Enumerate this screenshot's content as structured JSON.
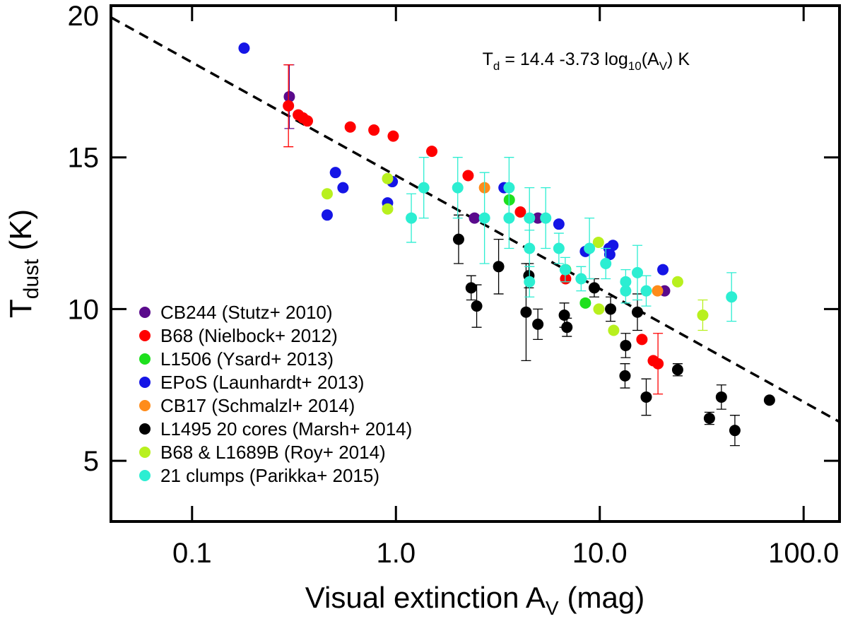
{
  "chart_data": {
    "type": "scatter",
    "xscale": "log",
    "xlim": [
      0.04,
      150
    ],
    "ylim": [
      3,
      20
    ],
    "xticks": [
      0.1,
      {
        "value": 1,
        "label": "1.0"
      },
      {
        "value": 10,
        "label": "10.0"
      },
      {
        "value": 100,
        "label": "100.0"
      }
    ],
    "yticks": [
      5,
      10,
      15,
      20
    ],
    "xlabel": [
      "Visual extinction A",
      "V",
      "(mag)"
    ],
    "ylabel": [
      "T",
      "dust",
      "(K)"
    ],
    "annotation": [
      "T",
      "d",
      " = 14.4 -3.73 log",
      "10",
      "(A",
      "V",
      ") K"
    ],
    "fit": {
      "intercept": 14.4,
      "slope": -3.73
    },
    "legend": "lower left",
    "series": [
      {
        "name": "CB244 (Stutz+ 2010)",
        "color": "#5a0a8c",
        "x": [
          0.3,
          2.43,
          4.97,
          20.8
        ],
        "y": [
          17.0,
          13.0,
          13.0,
          10.6
        ],
        "errors": [
          1.05,
          null,
          null,
          null
        ]
      },
      {
        "name": "B68 (Nielbock+ 2012)",
        "color": "#ff0000",
        "x": [
          0.297,
          0.332,
          0.35,
          0.368,
          0.597,
          0.78,
          0.97,
          1.5,
          2.26,
          4.08,
          6.8,
          16.1,
          18.3,
          19.3
        ],
        "y": [
          16.7,
          16.4,
          16.3,
          16.2,
          16.0,
          15.9,
          15.7,
          15.2,
          14.4,
          13.2,
          11.0,
          9.0,
          8.3,
          8.2
        ],
        "errors": [
          1.35,
          null,
          null,
          null,
          null,
          null,
          null,
          null,
          null,
          null,
          null,
          null,
          null,
          1.0
        ]
      },
      {
        "name": "L1506 (Ysard+ 2013)",
        "color": "#1ee01e",
        "x": [
          3.6,
          6.8,
          8.5
        ],
        "y": [
          13.6,
          11.3,
          10.2
        ]
      },
      {
        "name": "EPoS (Launhardt+ 2013)",
        "color": "#1515e6",
        "x": [
          0.18,
          0.505,
          0.55,
          0.46,
          0.91,
          0.96,
          3.39,
          6.3,
          8.5,
          11.2,
          11.1,
          11.6,
          20.4
        ],
        "y": [
          18.6,
          14.5,
          14.0,
          13.1,
          13.5,
          14.2,
          14.0,
          12.8,
          11.9,
          11.8,
          12.0,
          12.1,
          11.3
        ]
      },
      {
        "name": "CB17 (Schmalzl+ 2014)",
        "color": "#ff8c1a",
        "x": [
          2.72,
          19.2
        ],
        "y": [
          14.0,
          10.6
        ]
      },
      {
        "name": "L1495 20 cores (Marsh+ 2014)",
        "color": "#000000",
        "x": [
          2.03,
          2.34,
          2.49,
          3.19,
          4.35,
          4.49,
          4.97,
          6.7,
          6.9,
          9.4,
          11.3,
          15.3,
          13.4,
          13.3,
          16.9,
          24.1,
          34.5,
          39.5,
          46.0,
          68.0
        ],
        "y": [
          12.3,
          10.7,
          10.1,
          11.4,
          9.9,
          11.1,
          9.5,
          9.8,
          9.4,
          10.7,
          10.0,
          9.9,
          8.8,
          7.8,
          7.1,
          8.0,
          6.4,
          7.1,
          6.0,
          7.0
        ],
        "errors": [
          0.8,
          0.4,
          0.7,
          0.9,
          1.6,
          0.4,
          0.5,
          0.4,
          0.3,
          0.3,
          0.4,
          0.6,
          0.4,
          0.4,
          0.6,
          0.2,
          0.2,
          0.4,
          0.5,
          null
        ]
      },
      {
        "name": "B68 & L1689B (Roy+ 2014)",
        "color": "#b8f01e",
        "x": [
          0.46,
          0.91,
          0.91,
          9.85,
          9.9,
          11.7,
          24.1,
          32.0
        ],
        "y": [
          13.8,
          14.3,
          13.3,
          12.2,
          10.0,
          9.3,
          10.9,
          9.8
        ],
        "errors": [
          null,
          null,
          null,
          null,
          null,
          null,
          null,
          0.5
        ]
      },
      {
        "name": "21 clumps (Parikka+ 2015)",
        "color": "#2ceed2",
        "x": [
          1.19,
          1.37,
          2.01,
          2.72,
          3.59,
          3.59,
          4.52,
          4.52,
          5.43,
          6.3,
          6.77,
          8.1,
          8.9,
          10.7,
          13.4,
          13.4,
          15.3,
          16.9,
          44.3,
          4.52
        ],
        "y": [
          13.0,
          14.0,
          14.0,
          13.0,
          14.0,
          13.0,
          13.0,
          12.0,
          13.0,
          12.0,
          11.3,
          11.0,
          12.0,
          11.5,
          10.9,
          10.6,
          11.2,
          10.6,
          10.4,
          10.9
        ],
        "errors": [
          0.8,
          1.0,
          1.0,
          1.5,
          1.0,
          1.0,
          1.0,
          0.6,
          1.0,
          0.5,
          0.4,
          0.4,
          1.0,
          0.5,
          0.4,
          0.4,
          0.9,
          0.5,
          0.8,
          0.5
        ]
      }
    ]
  }
}
